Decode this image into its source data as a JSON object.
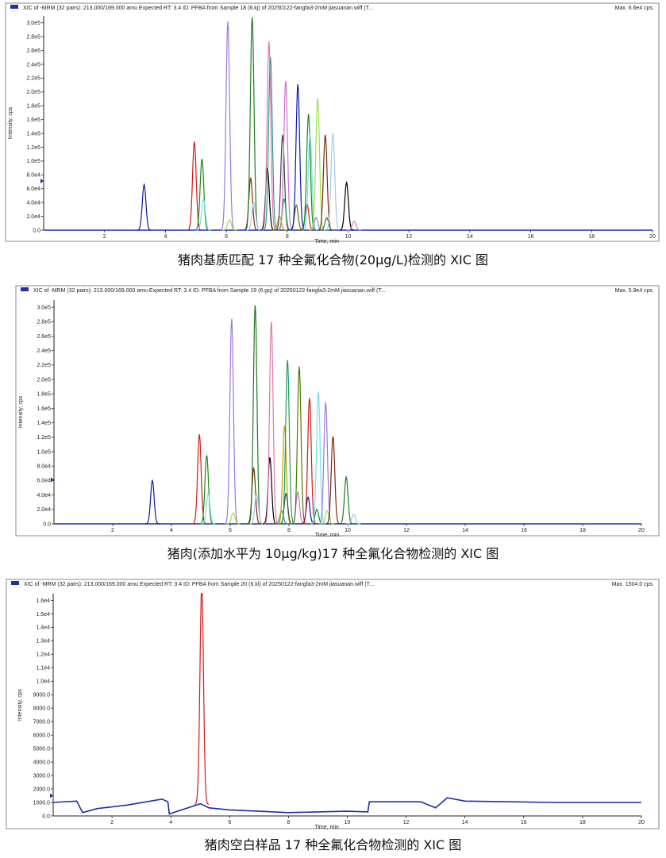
{
  "colors": {
    "baseline": "#1c2ea8",
    "peaks": [
      "#0a1aa8",
      "#d11a1a",
      "#1a8a1a",
      "#6fe3e8",
      "#9b7bd8",
      "#a0e04a",
      "#7a2a0a",
      "#1f7b1f",
      "#a8c7f0",
      "#000000",
      "#e07aa0",
      "#2a9a9a",
      "#c0a000",
      "#444444",
      "#1aa05a",
      "#d070d0",
      "#507a00"
    ]
  },
  "panels": [
    {
      "header": "XIC of -MRM (32 pairs): 213.000/169.000 amu Expected RT: 3.4 ID: PFBA from Sample 18 (6.kj) of 20250122-fangfa3-2mM jiasuanan.wiff (T...",
      "max_label": "Max. 6.6e4 cps.",
      "caption": "猪肉基质匹配 17 种全氟化合物(20μg/L)检测的 XIC 图"
    },
    {
      "header": "XIC of -MRM (32 pairs): 213.000/169.000 amu Expected RT: 3.4 ID: PFBA from Sample 19 (6.gq) of 20250122-fangfa3-2mM jiasuanan.wiff (T...",
      "max_label": "Max. 5.9e4 cps.",
      "caption": "猪肉(添加水平为 10μg/kg)17 种全氟化合物检测的 XIC 图"
    },
    {
      "header": "XIC of -MRM (32 pairs): 213.000/169.000 amu Expected RT: 3.4 ID: PFBA from Sample 20 (6.kl) of 20250122-fangfa3-2mM jiasuanan.wiff (T...",
      "max_label": "Max. 1504.0 cps.",
      "caption": "猪肉空白样品 17 种全氟化合物检测的 XIC 图"
    }
  ],
  "chart_data": [
    {
      "type": "line",
      "title": "XIC of -MRM (32 pairs): PFBA, Sample 18",
      "xlabel": "Time, min",
      "ylabel": "Intensity, cps",
      "xlim": [
        0,
        20
      ],
      "ylim": [
        0,
        310000
      ],
      "x_ticks": [
        2,
        4,
        6,
        8,
        10,
        12,
        14,
        16,
        18,
        20
      ],
      "x_tick_labels": [
        "2",
        "4",
        "6",
        "8",
        "10",
        "12",
        "14",
        "16",
        "18",
        "20"
      ],
      "y_ticks": [
        0,
        20000,
        40000,
        60000,
        80000,
        100000,
        120000,
        140000,
        160000,
        180000,
        200000,
        220000,
        240000,
        260000,
        280000,
        300000
      ],
      "y_tick_labels": [
        "0.0",
        "2.0e4",
        "4.0e4",
        "6.0e4",
        "8.0e4",
        "1.0e5",
        "1.2e5",
        "1.4e5",
        "1.6e5",
        "1.8e5",
        "2.0e5",
        "2.2e5",
        "2.4e5",
        "2.6e5",
        "2.8e5",
        "3.0e5"
      ],
      "peaks": [
        {
          "rt": 3.3,
          "height": 66000
        },
        {
          "rt": 4.95,
          "height": 128000
        },
        {
          "rt": 5.2,
          "height": 103000
        },
        {
          "rt": 5.25,
          "height": 45000
        },
        {
          "rt": 6.05,
          "height": 302000
        },
        {
          "rt": 6.1,
          "height": 15000
        },
        {
          "rt": 6.8,
          "height": 75000
        },
        {
          "rt": 6.85,
          "height": 308000
        },
        {
          "rt": 6.9,
          "height": 40000
        },
        {
          "rt": 7.35,
          "height": 90000
        },
        {
          "rt": 7.4,
          "height": 273000
        },
        {
          "rt": 7.45,
          "height": 250000
        },
        {
          "rt": 7.75,
          "height": 20000
        },
        {
          "rt": 7.85,
          "height": 138000
        },
        {
          "rt": 7.9,
          "height": 45000
        },
        {
          "rt": 7.95,
          "height": 216000
        },
        {
          "rt": 8.3,
          "height": 36000
        },
        {
          "rt": 8.35,
          "height": 211000
        },
        {
          "rt": 8.65,
          "height": 38000
        },
        {
          "rt": 8.7,
          "height": 168000
        },
        {
          "rt": 8.75,
          "height": 140000
        },
        {
          "rt": 8.95,
          "height": 18000
        },
        {
          "rt": 9.0,
          "height": 191000
        },
        {
          "rt": 9.25,
          "height": 138000
        },
        {
          "rt": 9.3,
          "height": 18000
        },
        {
          "rt": 9.5,
          "height": 140000
        },
        {
          "rt": 9.95,
          "height": 69000
        },
        {
          "rt": 10.2,
          "height": 13000
        }
      ],
      "baseline": [
        {
          "t": 0,
          "v": 0
        },
        {
          "t": 10.7,
          "v": 0
        },
        {
          "t": 20,
          "v": 0
        }
      ],
      "marker_y": 71000
    },
    {
      "type": "line",
      "title": "XIC of -MRM (32 pairs): PFBA, Sample 19",
      "xlabel": "Time, min",
      "ylabel": "Intensity, cps",
      "xlim": [
        0,
        20
      ],
      "ylim": [
        0,
        310000
      ],
      "x_ticks": [
        2,
        4,
        6,
        8,
        10,
        12,
        14,
        16,
        18,
        20
      ],
      "x_tick_labels": [
        "2",
        "4",
        "6",
        "8",
        "10",
        "12",
        "14",
        "16",
        "18",
        "20"
      ],
      "y_ticks": [
        0,
        20000,
        40000,
        60000,
        80000,
        100000,
        120000,
        140000,
        160000,
        180000,
        200000,
        220000,
        240000,
        260000,
        280000,
        300000
      ],
      "y_tick_labels": [
        "0.0",
        "2.0e4",
        "4.0e4",
        "6.0e4",
        "8.0e4",
        "1.0e5",
        "1.2e5",
        "1.4e5",
        "1.6e5",
        "1.8e5",
        "2.0e5",
        "2.2e5",
        "2.4e5",
        "2.6e5",
        "2.8e5",
        "3.0e5"
      ],
      "peaks": [
        {
          "rt": 3.35,
          "height": 60000
        },
        {
          "rt": 4.95,
          "height": 124000
        },
        {
          "rt": 5.2,
          "height": 95000
        },
        {
          "rt": 5.25,
          "height": 42000
        },
        {
          "rt": 6.05,
          "height": 284000
        },
        {
          "rt": 6.1,
          "height": 15000
        },
        {
          "rt": 6.8,
          "height": 77000
        },
        {
          "rt": 6.85,
          "height": 303000
        },
        {
          "rt": 6.9,
          "height": 42000
        },
        {
          "rt": 7.35,
          "height": 92000
        },
        {
          "rt": 7.4,
          "height": 280000
        },
        {
          "rt": 7.75,
          "height": 18000
        },
        {
          "rt": 7.85,
          "height": 136000
        },
        {
          "rt": 7.9,
          "height": 42000
        },
        {
          "rt": 7.95,
          "height": 227000
        },
        {
          "rt": 8.3,
          "height": 44000
        },
        {
          "rt": 8.35,
          "height": 218000
        },
        {
          "rt": 8.65,
          "height": 37000
        },
        {
          "rt": 8.7,
          "height": 174000
        },
        {
          "rt": 8.95,
          "height": 20000
        },
        {
          "rt": 9.0,
          "height": 183000
        },
        {
          "rt": 9.25,
          "height": 168000
        },
        {
          "rt": 9.3,
          "height": 18000
        },
        {
          "rt": 9.5,
          "height": 121000
        },
        {
          "rt": 9.95,
          "height": 65000
        },
        {
          "rt": 10.2,
          "height": 13000
        }
      ],
      "baseline": [
        {
          "t": 0,
          "v": 0
        },
        {
          "t": 10.7,
          "v": 0
        },
        {
          "t": 20,
          "v": 0
        }
      ],
      "marker_y": 61000
    },
    {
      "type": "line",
      "title": "XIC of -MRM (32 pairs): PFBA, Sample 20",
      "xlabel": "Time, min",
      "ylabel": "Intensity, cps",
      "xlim": [
        0,
        20
      ],
      "ylim": [
        0,
        16500
      ],
      "x_ticks": [
        2,
        4,
        6,
        8,
        10,
        12,
        14,
        16,
        18,
        20
      ],
      "x_tick_labels": [
        "2",
        "4",
        "6",
        "8",
        "10",
        "12",
        "14",
        "16",
        "18",
        "20"
      ],
      "y_ticks": [
        0,
        1000,
        2000,
        3000,
        4000,
        5000,
        6000,
        7000,
        8000,
        9000,
        10000,
        11000,
        12000,
        13000,
        14000,
        15000,
        16000
      ],
      "y_tick_labels": [
        "0.0",
        "1000.0",
        "2000.0",
        "3000.0",
        "4000.0",
        "5000.0",
        "6000.0",
        "7000.0",
        "8000.0",
        "9000.0",
        "1.0e4",
        "1.1e4",
        "1.2e4",
        "1.3e4",
        "1.4e4",
        "1.5e4",
        "1.6e4"
      ],
      "peaks": [
        {
          "rt": 5.05,
          "height": 16200
        }
      ],
      "baseline": [
        {
          "t": 0,
          "v": 1000
        },
        {
          "t": 0.8,
          "v": 1100
        },
        {
          "t": 1.0,
          "v": 250
        },
        {
          "t": 1.5,
          "v": 550
        },
        {
          "t": 2.5,
          "v": 800
        },
        {
          "t": 3.7,
          "v": 1250
        },
        {
          "t": 3.9,
          "v": 1050
        },
        {
          "t": 3.95,
          "v": 150
        },
        {
          "t": 5.0,
          "v": 900
        },
        {
          "t": 5.3,
          "v": 600
        },
        {
          "t": 6.0,
          "v": 450
        },
        {
          "t": 7.0,
          "v": 350
        },
        {
          "t": 8.0,
          "v": 250
        },
        {
          "t": 9.0,
          "v": 300
        },
        {
          "t": 10.0,
          "v": 350
        },
        {
          "t": 10.7,
          "v": 300
        },
        {
          "t": 10.75,
          "v": 1050
        },
        {
          "t": 12.5,
          "v": 1050
        },
        {
          "t": 13.0,
          "v": 600
        },
        {
          "t": 13.4,
          "v": 1350
        },
        {
          "t": 14.0,
          "v": 1100
        },
        {
          "t": 17.0,
          "v": 1000
        },
        {
          "t": 20.0,
          "v": 1000
        }
      ],
      "marker_y": 1504
    }
  ]
}
